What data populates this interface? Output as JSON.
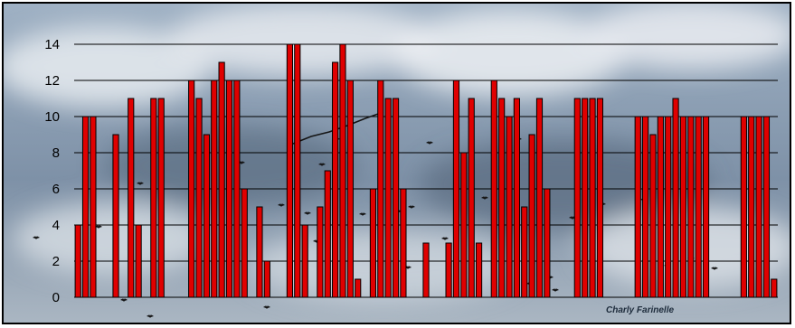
{
  "chart_data": {
    "type": "bar",
    "title": "",
    "xlabel": "",
    "ylabel": "",
    "ylim": [
      0,
      14
    ],
    "yticks": [
      0,
      2,
      4,
      6,
      8,
      10,
      12,
      14
    ],
    "ytick_labels": [
      "0",
      "2",
      "4",
      "6",
      "8",
      "10",
      "12",
      "14"
    ],
    "grid": true,
    "legend": "none",
    "bar_color": "#e00000",
    "gridline_color": "#000000",
    "values": [
      4,
      10,
      10,
      null,
      null,
      9,
      null,
      11,
      4,
      null,
      11,
      11,
      null,
      null,
      null,
      12,
      11,
      9,
      12,
      13,
      12,
      12,
      6,
      null,
      5,
      2,
      null,
      null,
      14,
      14,
      4,
      null,
      5,
      7,
      13,
      14,
      12,
      1,
      null,
      6,
      12,
      11,
      11,
      6,
      null,
      null,
      3,
      null,
      null,
      3,
      12,
      8,
      11,
      3,
      null,
      12,
      11,
      10,
      11,
      5,
      9,
      11,
      6,
      null,
      null,
      null,
      11,
      11,
      11,
      11,
      null,
      null,
      null,
      null,
      10,
      10,
      9,
      10,
      10,
      11,
      10,
      10,
      10,
      10,
      null,
      null,
      null,
      null,
      10,
      10,
      10,
      10,
      1
    ]
  },
  "credit": "Charly Farinelle",
  "background": {
    "sky_color": "#8a9db2",
    "cloud_color": "#e6eaee",
    "dark_cloud_color": "#55667a",
    "bird_color": "#141414"
  }
}
